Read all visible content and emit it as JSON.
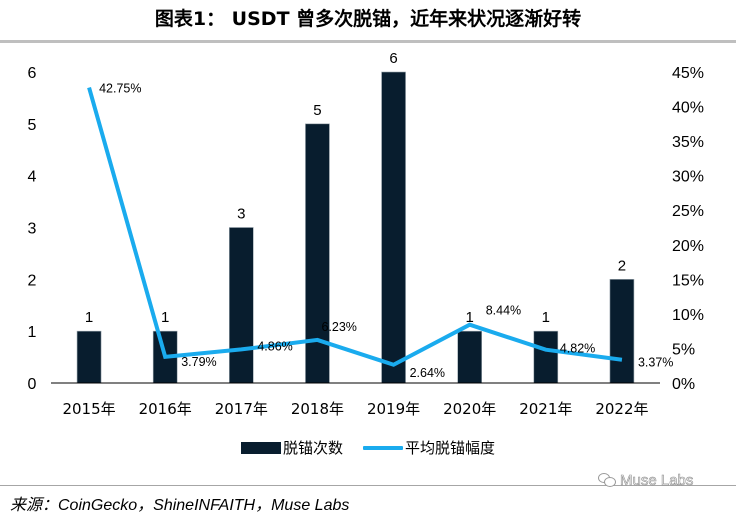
{
  "header": {
    "title": "图表1：  USDT 曾多次脱锚，近年来状况逐渐好转"
  },
  "chart_data": {
    "type": "bar+line",
    "title": "图表1：  USDT 曾多次脱锚，近年来状况逐渐好转",
    "categories": [
      "2015年",
      "2016年",
      "2017年",
      "2018年",
      "2019年",
      "2020年",
      "2021年",
      "2022年"
    ],
    "series": [
      {
        "name": "脱锚次数",
        "type": "bar",
        "axis": "left",
        "color": "#081d2e",
        "values": [
          1,
          1,
          3,
          5,
          6,
          1,
          1,
          2
        ],
        "labels": [
          "1",
          "1",
          "3",
          "5",
          "6",
          "1",
          "1",
          "2"
        ]
      },
      {
        "name": "平均脱锚幅度",
        "type": "line",
        "axis": "right",
        "color": "#1aabee",
        "values": [
          42.75,
          3.79,
          4.86,
          6.23,
          2.64,
          8.44,
          4.82,
          3.37
        ],
        "labels": [
          "42.75%",
          "3.79%",
          "4.86%",
          "6.23%",
          "2.64%",
          "8.44%",
          "4.82%",
          "3.37%"
        ]
      }
    ],
    "y_left": {
      "min": 0,
      "max": 6,
      "ticks": [
        "0",
        "1",
        "2",
        "3",
        "4",
        "5",
        "6"
      ]
    },
    "y_right": {
      "min": 0,
      "max": 45,
      "ticks": [
        "0%",
        "5%",
        "10%",
        "15%",
        "20%",
        "25%",
        "30%",
        "35%",
        "40%",
        "45%"
      ]
    },
    "xlabel": "",
    "ylabel": "",
    "grid": false,
    "legend": {
      "position": "bottom",
      "entries": [
        "脱锚次数",
        "平均脱锚幅度"
      ]
    }
  },
  "footer": {
    "source": "来源：CoinGecko，ShineINFAITH，Muse Labs",
    "watermark": "Muse Labs"
  }
}
